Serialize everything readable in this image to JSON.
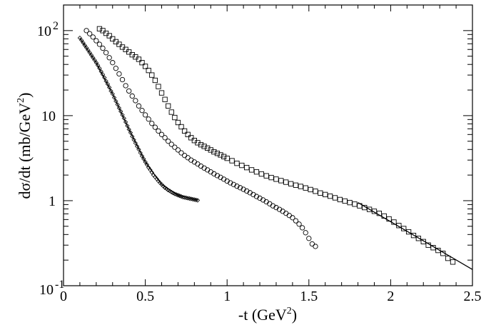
{
  "chart_data": {
    "type": "scatter",
    "title": "",
    "xlabel_parts": {
      "pre": "-t (GeV",
      "sup": "2",
      "post": ")"
    },
    "ylabel_parts": {
      "pre": "dσ/dt (mb/GeV",
      "sup": "2",
      "post": ")"
    },
    "xlim": [
      0,
      2.5
    ],
    "ylim": [
      0.1,
      200
    ],
    "yscale": "log",
    "grid": false,
    "legend": "none",
    "x_ticks": [
      0,
      0.5,
      1,
      1.5,
      2,
      2.5
    ],
    "x_tick_labels": [
      "0",
      "0.5",
      "1",
      "1.5",
      "2",
      "2.5"
    ],
    "y_tick_labels": [
      {
        "value": 0.1,
        "base": "10",
        "exp": "-1"
      },
      {
        "value": 1,
        "base": "1",
        "exp": ""
      },
      {
        "value": 10,
        "base": "10",
        "exp": ""
      },
      {
        "value": 100,
        "base": "10",
        "exp": "2"
      }
    ],
    "series": [
      {
        "marker": "diamond",
        "x": [
          0.1,
          0.11,
          0.12,
          0.13,
          0.14,
          0.15,
          0.16,
          0.17,
          0.18,
          0.19,
          0.2,
          0.21,
          0.22,
          0.23,
          0.24,
          0.25,
          0.26,
          0.27,
          0.28,
          0.29,
          0.3,
          0.31,
          0.32,
          0.33,
          0.34,
          0.35,
          0.36,
          0.37,
          0.38,
          0.39,
          0.4,
          0.41,
          0.42,
          0.43,
          0.44,
          0.45,
          0.46,
          0.47,
          0.48,
          0.49,
          0.5,
          0.51,
          0.52,
          0.53,
          0.54,
          0.55,
          0.56,
          0.57,
          0.58,
          0.59,
          0.6,
          0.61,
          0.62,
          0.63,
          0.64,
          0.65,
          0.66,
          0.67,
          0.68,
          0.69,
          0.7,
          0.71,
          0.72,
          0.73,
          0.74,
          0.75,
          0.76,
          0.77,
          0.78,
          0.79,
          0.8,
          0.81,
          0.82
        ],
        "y": [
          82,
          77,
          72,
          67,
          63,
          59,
          55,
          51.5,
          48,
          45,
          42,
          39,
          36,
          33,
          30.5,
          28,
          25.5,
          23.5,
          21.5,
          19.5,
          18,
          16.3,
          14.8,
          13.5,
          12.3,
          11.2,
          10.2,
          9.3,
          8.4,
          7.6,
          6.9,
          6.3,
          5.7,
          5.2,
          4.75,
          4.35,
          4.0,
          3.65,
          3.35,
          3.1,
          2.85,
          2.65,
          2.45,
          2.3,
          2.15,
          2.0,
          1.9,
          1.8,
          1.7,
          1.62,
          1.55,
          1.48,
          1.42,
          1.38,
          1.33,
          1.3,
          1.26,
          1.23,
          1.2,
          1.18,
          1.16,
          1.14,
          1.12,
          1.1,
          1.09,
          1.08,
          1.07,
          1.06,
          1.05,
          1.04,
          1.03,
          1.02,
          1.01
        ]
      },
      {
        "marker": "circle",
        "x": [
          0.14,
          0.16,
          0.18,
          0.2,
          0.22,
          0.24,
          0.26,
          0.28,
          0.3,
          0.32,
          0.34,
          0.36,
          0.38,
          0.4,
          0.42,
          0.44,
          0.46,
          0.48,
          0.5,
          0.52,
          0.54,
          0.56,
          0.58,
          0.6,
          0.62,
          0.64,
          0.66,
          0.68,
          0.7,
          0.72,
          0.74,
          0.76,
          0.78,
          0.8,
          0.82,
          0.84,
          0.86,
          0.88,
          0.9,
          0.92,
          0.94,
          0.96,
          0.98,
          1.0,
          1.02,
          1.04,
          1.06,
          1.08,
          1.1,
          1.12,
          1.14,
          1.16,
          1.18,
          1.2,
          1.22,
          1.24,
          1.26,
          1.28,
          1.3,
          1.32,
          1.34,
          1.36,
          1.38,
          1.4,
          1.42,
          1.44,
          1.46,
          1.48,
          1.5,
          1.52,
          1.54
        ],
        "y": [
          100,
          92,
          84,
          76,
          69,
          62,
          55,
          48,
          42,
          36,
          31,
          26.5,
          22.5,
          19.5,
          17,
          15,
          13,
          11.5,
          10.2,
          9.1,
          8.1,
          7.3,
          6.6,
          6.0,
          5.5,
          5.0,
          4.6,
          4.25,
          3.95,
          3.65,
          3.4,
          3.2,
          3.0,
          2.85,
          2.7,
          2.55,
          2.42,
          2.3,
          2.18,
          2.07,
          1.97,
          1.88,
          1.79,
          1.7,
          1.62,
          1.55,
          1.48,
          1.42,
          1.36,
          1.3,
          1.24,
          1.18,
          1.12,
          1.07,
          1.02,
          0.97,
          0.92,
          0.87,
          0.83,
          0.79,
          0.75,
          0.71,
          0.67,
          0.63,
          0.58,
          0.53,
          0.48,
          0.42,
          0.36,
          0.31,
          0.29
        ]
      },
      {
        "marker": "square",
        "x": [
          0.22,
          0.24,
          0.26,
          0.28,
          0.3,
          0.32,
          0.34,
          0.36,
          0.38,
          0.4,
          0.42,
          0.44,
          0.46,
          0.48,
          0.5,
          0.52,
          0.54,
          0.56,
          0.58,
          0.6,
          0.62,
          0.64,
          0.66,
          0.68,
          0.7,
          0.72,
          0.74,
          0.76,
          0.78,
          0.8,
          0.82,
          0.84,
          0.86,
          0.88,
          0.9,
          0.92,
          0.94,
          0.96,
          0.98,
          1.0,
          1.03,
          1.06,
          1.09,
          1.12,
          1.15,
          1.18,
          1.21,
          1.24,
          1.27,
          1.3,
          1.33,
          1.36,
          1.39,
          1.42,
          1.45,
          1.48,
          1.51,
          1.54,
          1.57,
          1.6,
          1.63,
          1.66,
          1.69,
          1.72,
          1.75,
          1.78,
          1.81,
          1.84,
          1.87,
          1.9,
          1.93,
          1.96,
          1.99,
          2.02,
          2.05,
          2.08,
          2.11,
          2.14,
          2.17,
          2.2,
          2.23,
          2.26,
          2.29,
          2.32,
          2.35,
          2.38
        ],
        "y": [
          105,
          100,
          93,
          87,
          80,
          74,
          69,
          64,
          60,
          56,
          52,
          49,
          46,
          42,
          38,
          34,
          30,
          26,
          22,
          18.5,
          15.5,
          13,
          11,
          9.5,
          8.3,
          7.4,
          6.6,
          6.0,
          5.5,
          5.1,
          4.8,
          4.55,
          4.35,
          4.15,
          3.95,
          3.75,
          3.6,
          3.45,
          3.3,
          3.15,
          2.95,
          2.75,
          2.6,
          2.45,
          2.3,
          2.18,
          2.06,
          1.96,
          1.87,
          1.79,
          1.72,
          1.65,
          1.58,
          1.52,
          1.47,
          1.41,
          1.35,
          1.29,
          1.23,
          1.18,
          1.13,
          1.08,
          1.03,
          0.99,
          0.95,
          0.91,
          0.87,
          0.83,
          0.79,
          0.75,
          0.71,
          0.66,
          0.61,
          0.56,
          0.51,
          0.47,
          0.43,
          0.39,
          0.36,
          0.33,
          0.3,
          0.28,
          0.26,
          0.24,
          0.21,
          0.19
        ]
      }
    ],
    "fits": [
      {
        "x": [
          0.1,
          0.82
        ],
        "y": [
          82,
          1.01
        ],
        "shape": [
          0.1,
          0.2,
          0.3,
          0.4,
          0.5,
          0.6,
          0.7,
          0.82
        ],
        "shape_y": [
          82,
          42,
          18,
          6.9,
          2.85,
          1.55,
          1.16,
          1.01
        ]
      },
      {
        "x": [
          1.8,
          2.5
        ],
        "y": [
          0.95,
          0.155
        ]
      }
    ]
  }
}
